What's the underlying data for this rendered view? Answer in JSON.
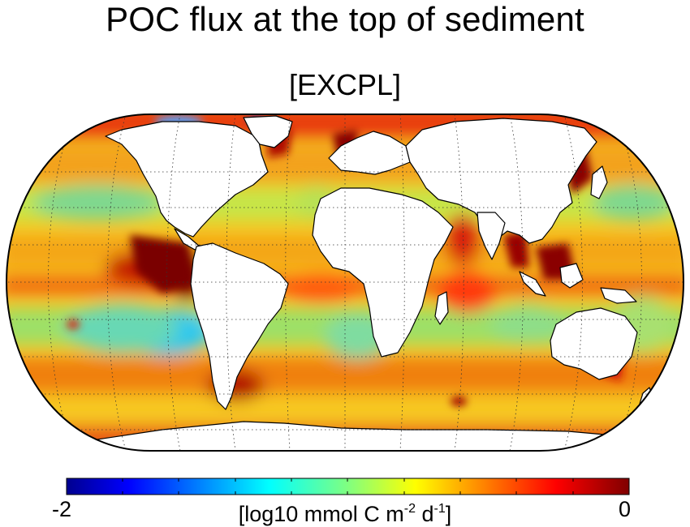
{
  "figure": {
    "title": "POC flux at the top of sediment",
    "subtitle": "[EXCPL]"
  },
  "colorbar": {
    "min_label": "-2",
    "max_label": "0",
    "units_prefix": "[log10 mmol C m",
    "units_exp1": "-2",
    "units_mid": " d",
    "units_exp2": "-1",
    "units_suffix": "]",
    "colormap": "jet",
    "range": [
      -2,
      0
    ]
  },
  "map": {
    "projection": "Robinson",
    "graticule": "dotted",
    "land_color": "#ffffff",
    "coastline_color": "#000000"
  },
  "chart_data": {
    "type": "heatmap",
    "title": "POC flux at the top of sediment",
    "subtitle": "[EXCPL]",
    "colorbar_range": [
      -2,
      0
    ],
    "colorbar_label": "[log10 mmol C m-2 d-1]"
  }
}
